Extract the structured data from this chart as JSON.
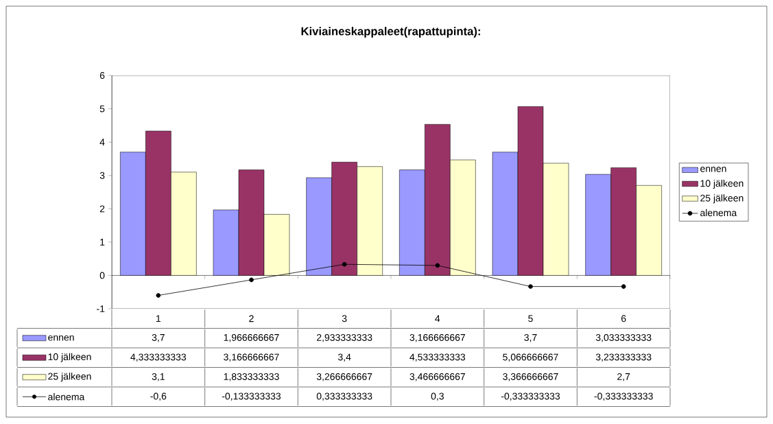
{
  "chart_data": {
    "type": "bar",
    "title": "Kiviaineskappaleet(rapattupinta):",
    "categories": [
      "1",
      "2",
      "3",
      "4",
      "5",
      "6"
    ],
    "ylim": [
      -1,
      6
    ],
    "yticks": [
      -1,
      0,
      1,
      2,
      3,
      4,
      5,
      6
    ],
    "legend": "right",
    "series": [
      {
        "name": "ennen",
        "color": "#9999ff",
        "values": [
          3.7,
          1.966666667,
          2.933333333,
          3.166666667,
          3.7,
          3.033333333
        ],
        "value_labels": [
          "3,7",
          "1,966666667",
          "2,933333333",
          "3,166666667",
          "3,7",
          "3,033333333"
        ]
      },
      {
        "name": "10 jälkeen",
        "color": "#993366",
        "values": [
          4.333333333,
          3.166666667,
          3.4,
          4.533333333,
          5.066666667,
          3.233333333
        ],
        "value_labels": [
          "4,333333333",
          "3,166666667",
          "3,4",
          "4,533333333",
          "5,066666667",
          "3,233333333"
        ]
      },
      {
        "name": "25 jälkeen",
        "color": "#ffffcc",
        "values": [
          3.1,
          1.833333333,
          3.266666667,
          3.466666667,
          3.366666667,
          2.7
        ],
        "value_labels": [
          "3,1",
          "1,833333333",
          "3,266666667",
          "3,466666667",
          "3,366666667",
          "2,7"
        ]
      },
      {
        "name": "alenema",
        "type": "line",
        "color": "#000000",
        "marker": "circle",
        "values": [
          -0.6,
          -0.133333333,
          0.333333333,
          0.3,
          -0.333333333,
          -0.333333333
        ],
        "value_labels": [
          "-0,6",
          "-0,133333333",
          "0,333333333",
          "0,3",
          "-0,333333333",
          "-0,333333333"
        ]
      }
    ]
  }
}
